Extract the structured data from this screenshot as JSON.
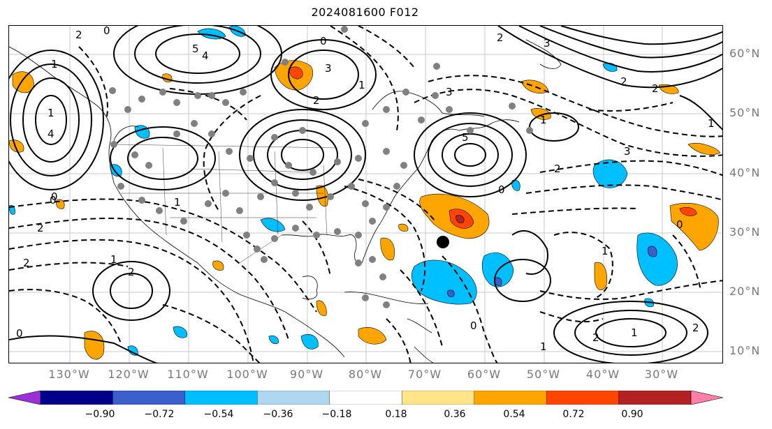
{
  "title": "2024081600 F012",
  "lat_labels": [
    "60°N",
    "50°N",
    "40°N",
    "30°N",
    "20°N",
    "10°N"
  ],
  "lon_labels": [
    "130°W",
    "120°W",
    "110°W",
    "100°W",
    "90°W",
    "80°W",
    "70°W",
    "60°W",
    "50°W",
    "40°W",
    "30°W"
  ],
  "colorbar": {
    "colors": [
      "#9b30d9",
      "#00008b",
      "#3a5fcd",
      "#00bfff",
      "#add8f0",
      "#ffffff",
      "#ffe48a",
      "#ffa500",
      "#ff4500",
      "#b22222",
      "#ff7fa8"
    ],
    "ticks": [
      "−0.90",
      "−0.72",
      "−0.54",
      "−0.36",
      "−0.18",
      "0.18",
      "0.36",
      "0.54",
      "0.72",
      "0.90"
    ]
  },
  "contour_labels": {
    "a": "2",
    "b": "0",
    "c": "1",
    "d": "5",
    "e": "4",
    "f": "3",
    "g": "2",
    "h": "1",
    "i": "0",
    "j": "1",
    "k": "2",
    "l": "3",
    "m": "3",
    "n": "1",
    "o": "2",
    "p": "2",
    "q": "4",
    "r": "5",
    "s": "0",
    "t": "1",
    "u": "2",
    "v": "3",
    "w": "0",
    "x": "1",
    "y": "2",
    "z": "0",
    "aa": "2",
    "ab": "1",
    "ac": "2",
    "ad": "0",
    "ae": "1",
    "af": "0",
    "ag": "1",
    "ah": "2",
    "ai": "0",
    "aj": "1",
    "ak": "2"
  }
}
